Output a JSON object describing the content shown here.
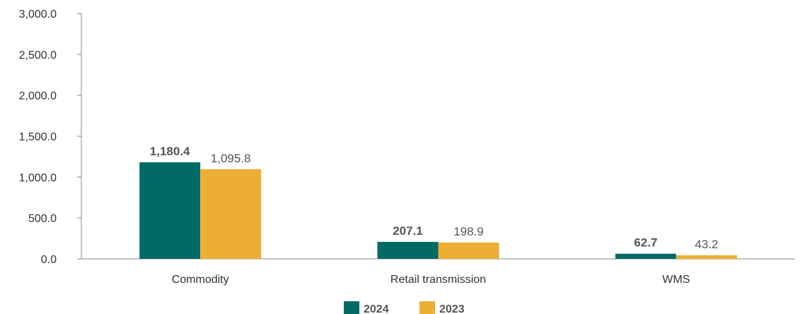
{
  "chart_data": {
    "type": "bar",
    "categories": [
      "Commodity",
      "Retail transmission",
      "WMS"
    ],
    "series": [
      {
        "name": "2024",
        "values": [
          1180.4,
          207.1,
          62.7
        ],
        "labels": [
          "1,180.4",
          "207.1",
          "62.7"
        ],
        "color": "#006A64",
        "bold": true
      },
      {
        "name": "2023",
        "values": [
          1095.8,
          198.9,
          43.2
        ],
        "labels": [
          "1,095.8",
          "198.9",
          "43.2"
        ],
        "color": "#ECAF33",
        "bold": false
      }
    ],
    "yticks": [
      "0.0",
      "500.0",
      "1,000.0",
      "1,500.0",
      "2,000.0",
      "2,500.0",
      "3,000.0"
    ],
    "ytick_values": [
      0,
      500,
      1000,
      1500,
      2000,
      2500,
      3000
    ],
    "ylim": [
      0,
      3000
    ],
    "title": "",
    "xlabel": "",
    "ylabel": "",
    "grid": false,
    "legend_position": "bottom-center"
  }
}
